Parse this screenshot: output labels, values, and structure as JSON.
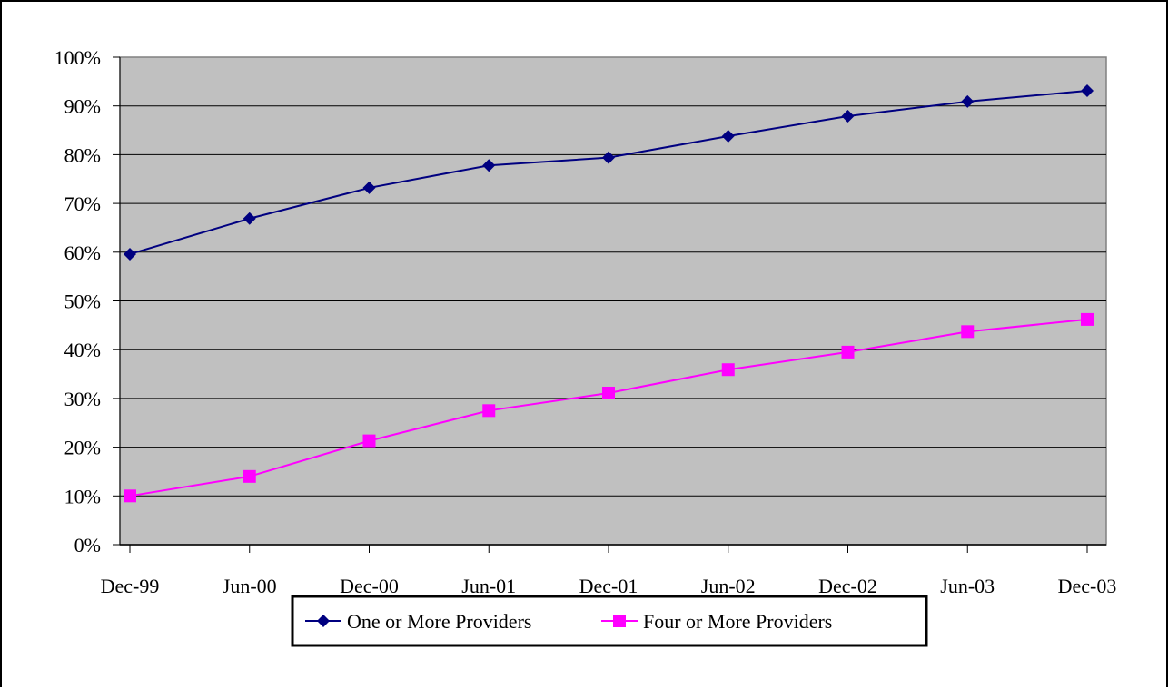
{
  "chart_data": {
    "type": "line",
    "title": "",
    "xlabel": "",
    "ylabel": "",
    "categories": [
      "Dec-99",
      "Jun-00",
      "Dec-00",
      "Jun-01",
      "Dec-01",
      "Jun-02",
      "Dec-02",
      "Jun-03",
      "Dec-03"
    ],
    "y_tick_labels": [
      "0%",
      "10%",
      "20%",
      "30%",
      "40%",
      "50%",
      "60%",
      "70%",
      "80%",
      "90%",
      "100%"
    ],
    "ylim": [
      0,
      100
    ],
    "y_unit": "%",
    "grid": true,
    "legend_placement": "bottom-center",
    "plot_background": "#C0C0C0",
    "series": [
      {
        "name": "One or More Providers",
        "color": "#000080",
        "marker": "diamond",
        "values": [
          59.6,
          66.9,
          73.2,
          77.8,
          79.4,
          83.8,
          87.9,
          90.9,
          93.1
        ]
      },
      {
        "name": "Four or More Providers",
        "color": "#FF00FF",
        "marker": "square",
        "values": [
          10.0,
          14.0,
          21.3,
          27.5,
          31.1,
          35.9,
          39.5,
          43.7,
          46.2
        ]
      }
    ]
  }
}
